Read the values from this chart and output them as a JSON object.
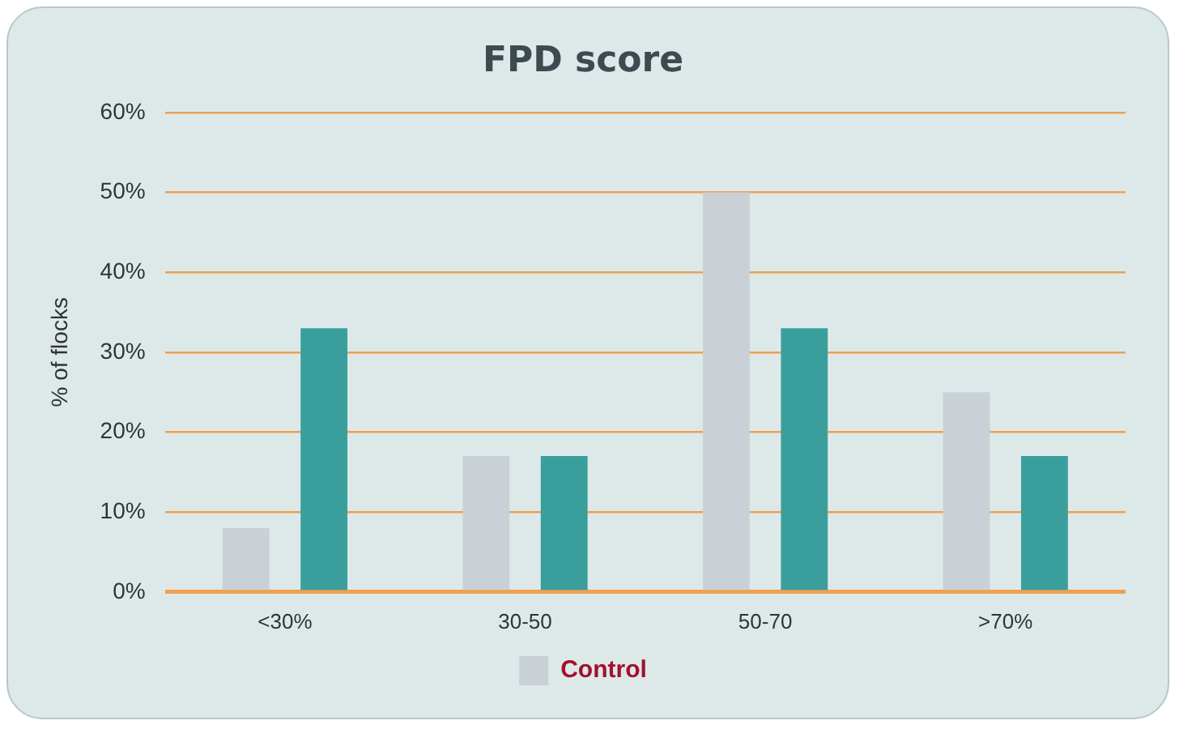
{
  "chart_data": {
    "type": "bar",
    "title": "FPD score",
    "ylabel": "% of flocks",
    "categories": [
      "<30%",
      "30-50",
      "50-70",
      ">70%"
    ],
    "series": [
      {
        "name": "Control",
        "color": "#c9d1d6",
        "values": [
          8,
          17,
          50,
          25
        ]
      },
      {
        "color": "#3a9e9c",
        "values": [
          33,
          17,
          33,
          17
        ]
      }
    ],
    "ylim": [
      0,
      60
    ],
    "yticks": [
      {
        "value": 0,
        "label": "0%"
      },
      {
        "value": 10,
        "label": "10%"
      },
      {
        "value": 20,
        "label": "20%"
      },
      {
        "value": 30,
        "label": "30%"
      },
      {
        "value": 40,
        "label": "40%"
      },
      {
        "value": 50,
        "label": "50%"
      },
      {
        "value": 60,
        "label": "60%"
      }
    ],
    "grid": "y",
    "legend": "bottom"
  }
}
